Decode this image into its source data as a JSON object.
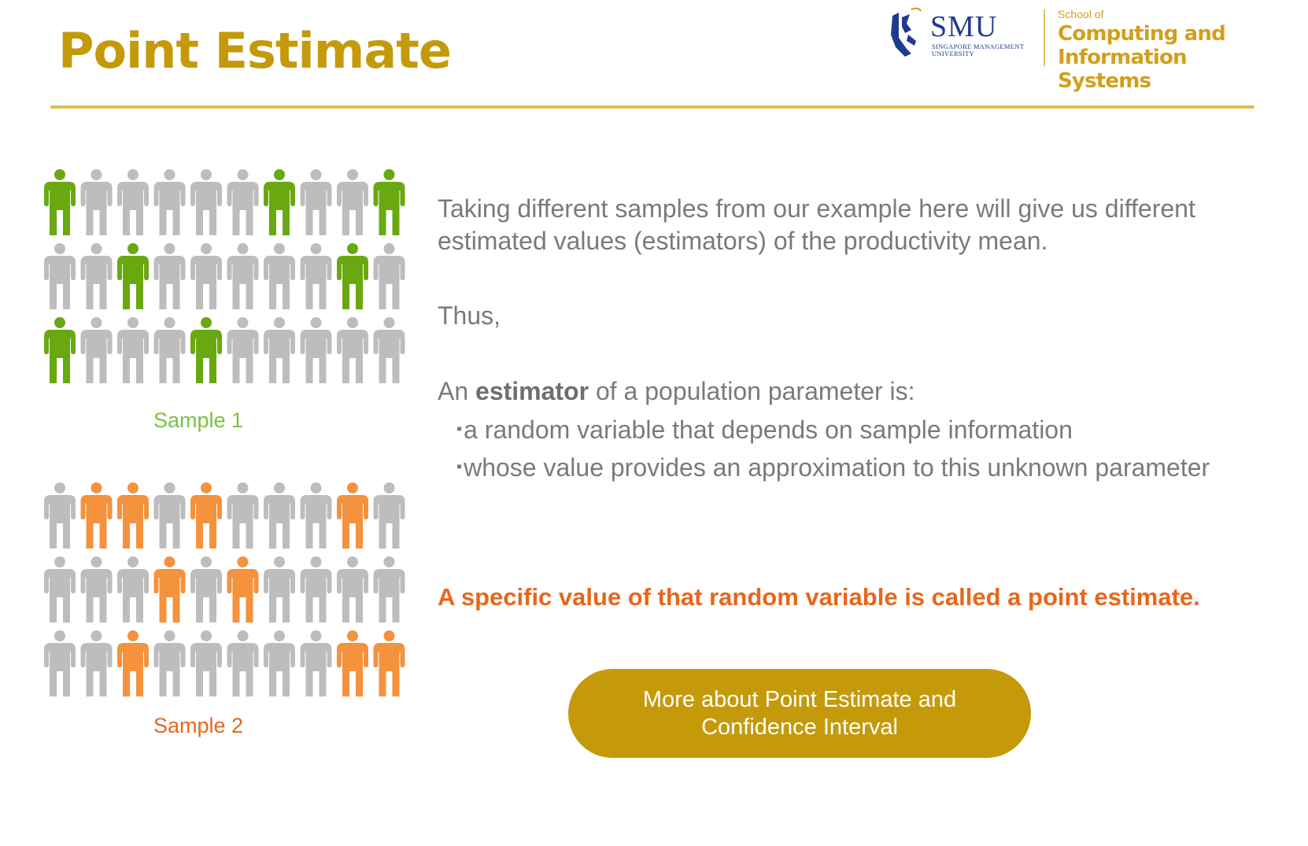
{
  "title": "Point Estimate",
  "logo": {
    "university": "SMU",
    "university_full": "Singapore Management University",
    "school_prefix": "School of",
    "school_name": "Computing and Information Systems"
  },
  "colors": {
    "title": "#c49a0b",
    "sample1_highlight": "#6aa812",
    "sample2_highlight": "#f5923e",
    "person_neutral": "#bdbdbd",
    "button": "#c49a0b",
    "highlight_text": "#e8661a"
  },
  "samples": [
    {
      "label": "Sample 1",
      "rows": [
        [
          1,
          0,
          0,
          0,
          0,
          0,
          1,
          0,
          0,
          1
        ],
        [
          0,
          0,
          1,
          0,
          0,
          0,
          0,
          0,
          1,
          0
        ],
        [
          1,
          0,
          0,
          0,
          1,
          0,
          0,
          0,
          0,
          0
        ]
      ]
    },
    {
      "label": "Sample 2",
      "rows": [
        [
          0,
          1,
          1,
          0,
          1,
          0,
          0,
          0,
          1,
          0
        ],
        [
          0,
          0,
          0,
          1,
          0,
          1,
          0,
          0,
          0,
          0
        ],
        [
          0,
          0,
          1,
          0,
          0,
          0,
          0,
          0,
          1,
          1
        ]
      ]
    }
  ],
  "content": {
    "para1": "Taking different samples from our example here will give us different estimated values (estimators) of the productivity mean.",
    "para2": "Thus,",
    "para3_prefix": "An ",
    "para3_bold": "estimator",
    "para3_suffix": " of a population parameter is:",
    "bullet_mark": "▪",
    "bullets": [
      "a random variable that depends on sample information",
      "whose value provides an approximation to this unknown parameter"
    ],
    "highlight": "A specific value of that random variable is called a point estimate."
  },
  "button": {
    "label": "More about Point Estimate and Confidence Interval"
  }
}
